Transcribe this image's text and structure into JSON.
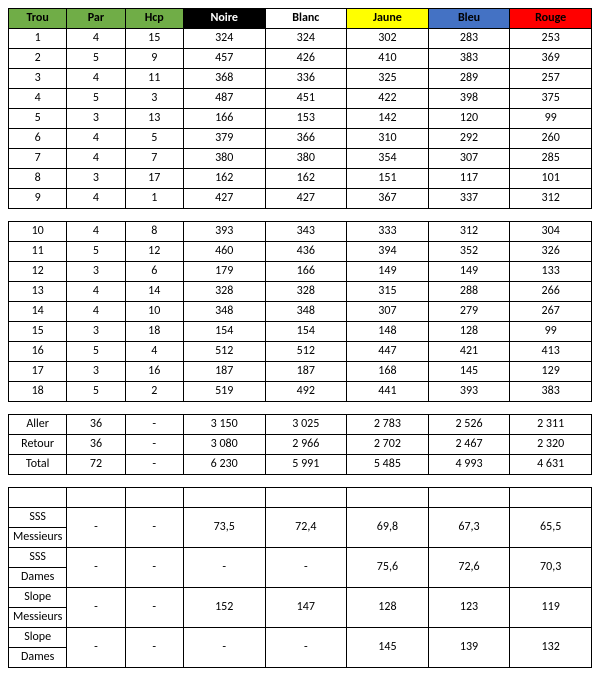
{
  "columns": {
    "trou": {
      "label": "Trou",
      "bg": "#70ad47",
      "fg": "#000000"
    },
    "par": {
      "label": "Par",
      "bg": "#70ad47",
      "fg": "#000000"
    },
    "hcp": {
      "label": "Hcp",
      "bg": "#70ad47",
      "fg": "#000000"
    },
    "noire": {
      "label": "Noire",
      "bg": "#000000",
      "fg": "#ffffff"
    },
    "blanc": {
      "label": "Blanc",
      "bg": "#ffffff",
      "fg": "#000000"
    },
    "jaune": {
      "label": "Jaune",
      "bg": "#ffff00",
      "fg": "#000000"
    },
    "bleu": {
      "label": "Bleu",
      "bg": "#4472c4",
      "fg": "#000000"
    },
    "rouge": {
      "label": "Rouge",
      "bg": "#ff0000",
      "fg": "#000000"
    }
  },
  "col_widths_pct": [
    10,
    10,
    10,
    14,
    14,
    14,
    14,
    14
  ],
  "front9": [
    {
      "trou": "1",
      "par": "4",
      "hcp": "15",
      "noire": "324",
      "blanc": "324",
      "jaune": "302",
      "bleu": "283",
      "rouge": "253"
    },
    {
      "trou": "2",
      "par": "5",
      "hcp": "9",
      "noire": "457",
      "blanc": "426",
      "jaune": "410",
      "bleu": "383",
      "rouge": "369"
    },
    {
      "trou": "3",
      "par": "4",
      "hcp": "11",
      "noire": "368",
      "blanc": "336",
      "jaune": "325",
      "bleu": "289",
      "rouge": "257"
    },
    {
      "trou": "4",
      "par": "5",
      "hcp": "3",
      "noire": "487",
      "blanc": "451",
      "jaune": "422",
      "bleu": "398",
      "rouge": "375"
    },
    {
      "trou": "5",
      "par": "3",
      "hcp": "13",
      "noire": "166",
      "blanc": "153",
      "jaune": "142",
      "bleu": "120",
      "rouge": "99"
    },
    {
      "trou": "6",
      "par": "4",
      "hcp": "5",
      "noire": "379",
      "blanc": "366",
      "jaune": "310",
      "bleu": "292",
      "rouge": "260"
    },
    {
      "trou": "7",
      "par": "4",
      "hcp": "7",
      "noire": "380",
      "blanc": "380",
      "jaune": "354",
      "bleu": "307",
      "rouge": "285"
    },
    {
      "trou": "8",
      "par": "3",
      "hcp": "17",
      "noire": "162",
      "blanc": "162",
      "jaune": "151",
      "bleu": "117",
      "rouge": "101"
    },
    {
      "trou": "9",
      "par": "4",
      "hcp": "1",
      "noire": "427",
      "blanc": "427",
      "jaune": "367",
      "bleu": "337",
      "rouge": "312"
    }
  ],
  "back9": [
    {
      "trou": "10",
      "par": "4",
      "hcp": "8",
      "noire": "393",
      "blanc": "343",
      "jaune": "333",
      "bleu": "312",
      "rouge": "304"
    },
    {
      "trou": "11",
      "par": "5",
      "hcp": "12",
      "noire": "460",
      "blanc": "436",
      "jaune": "394",
      "bleu": "352",
      "rouge": "326"
    },
    {
      "trou": "12",
      "par": "3",
      "hcp": "6",
      "noire": "179",
      "blanc": "166",
      "jaune": "149",
      "bleu": "149",
      "rouge": "133"
    },
    {
      "trou": "13",
      "par": "4",
      "hcp": "14",
      "noire": "328",
      "blanc": "328",
      "jaune": "315",
      "bleu": "288",
      "rouge": "266"
    },
    {
      "trou": "14",
      "par": "4",
      "hcp": "10",
      "noire": "348",
      "blanc": "348",
      "jaune": "307",
      "bleu": "279",
      "rouge": "267"
    },
    {
      "trou": "15",
      "par": "3",
      "hcp": "18",
      "noire": "154",
      "blanc": "154",
      "jaune": "148",
      "bleu": "128",
      "rouge": "99"
    },
    {
      "trou": "16",
      "par": "5",
      "hcp": "4",
      "noire": "512",
      "blanc": "512",
      "jaune": "447",
      "bleu": "421",
      "rouge": "413"
    },
    {
      "trou": "17",
      "par": "3",
      "hcp": "16",
      "noire": "187",
      "blanc": "187",
      "jaune": "168",
      "bleu": "145",
      "rouge": "129"
    },
    {
      "trou": "18",
      "par": "5",
      "hcp": "2",
      "noire": "519",
      "blanc": "492",
      "jaune": "441",
      "bleu": "393",
      "rouge": "383"
    }
  ],
  "totals": [
    {
      "label": "Aller",
      "par": "36",
      "hcp": "-",
      "noire": "3 150",
      "blanc": "3 025",
      "jaune": "2 783",
      "bleu": "2 526",
      "rouge": "2 311"
    },
    {
      "label": "Retour",
      "par": "36",
      "hcp": "-",
      "noire": "3 080",
      "blanc": "2 966",
      "jaune": "2 702",
      "bleu": "2 467",
      "rouge": "2 320"
    },
    {
      "label": "Total",
      "par": "72",
      "hcp": "-",
      "noire": "6 230",
      "blanc": "5 991",
      "jaune": "5 485",
      "bleu": "4 993",
      "rouge": "4 631"
    }
  ],
  "ratings": [
    {
      "l1": "SSS",
      "l2": "Messieurs",
      "par": "-",
      "hcp": "-",
      "noire": "73,5",
      "blanc": "72,4",
      "jaune": "69,8",
      "bleu": "67,3",
      "rouge": "65,5"
    },
    {
      "l1": "SSS",
      "l2": "Dames",
      "par": "-",
      "hcp": "-",
      "noire": "-",
      "blanc": "-",
      "jaune": "75,6",
      "bleu": "72,6",
      "rouge": "70,3"
    },
    {
      "l1": "Slope",
      "l2": "Messieurs",
      "par": "-",
      "hcp": "-",
      "noire": "152",
      "blanc": "147",
      "jaune": "128",
      "bleu": "123",
      "rouge": "119"
    },
    {
      "l1": "Slope",
      "l2": "Dames",
      "par": "-",
      "hcp": "-",
      "noire": "-",
      "blanc": "-",
      "jaune": "145",
      "bleu": "139",
      "rouge": "132"
    }
  ]
}
